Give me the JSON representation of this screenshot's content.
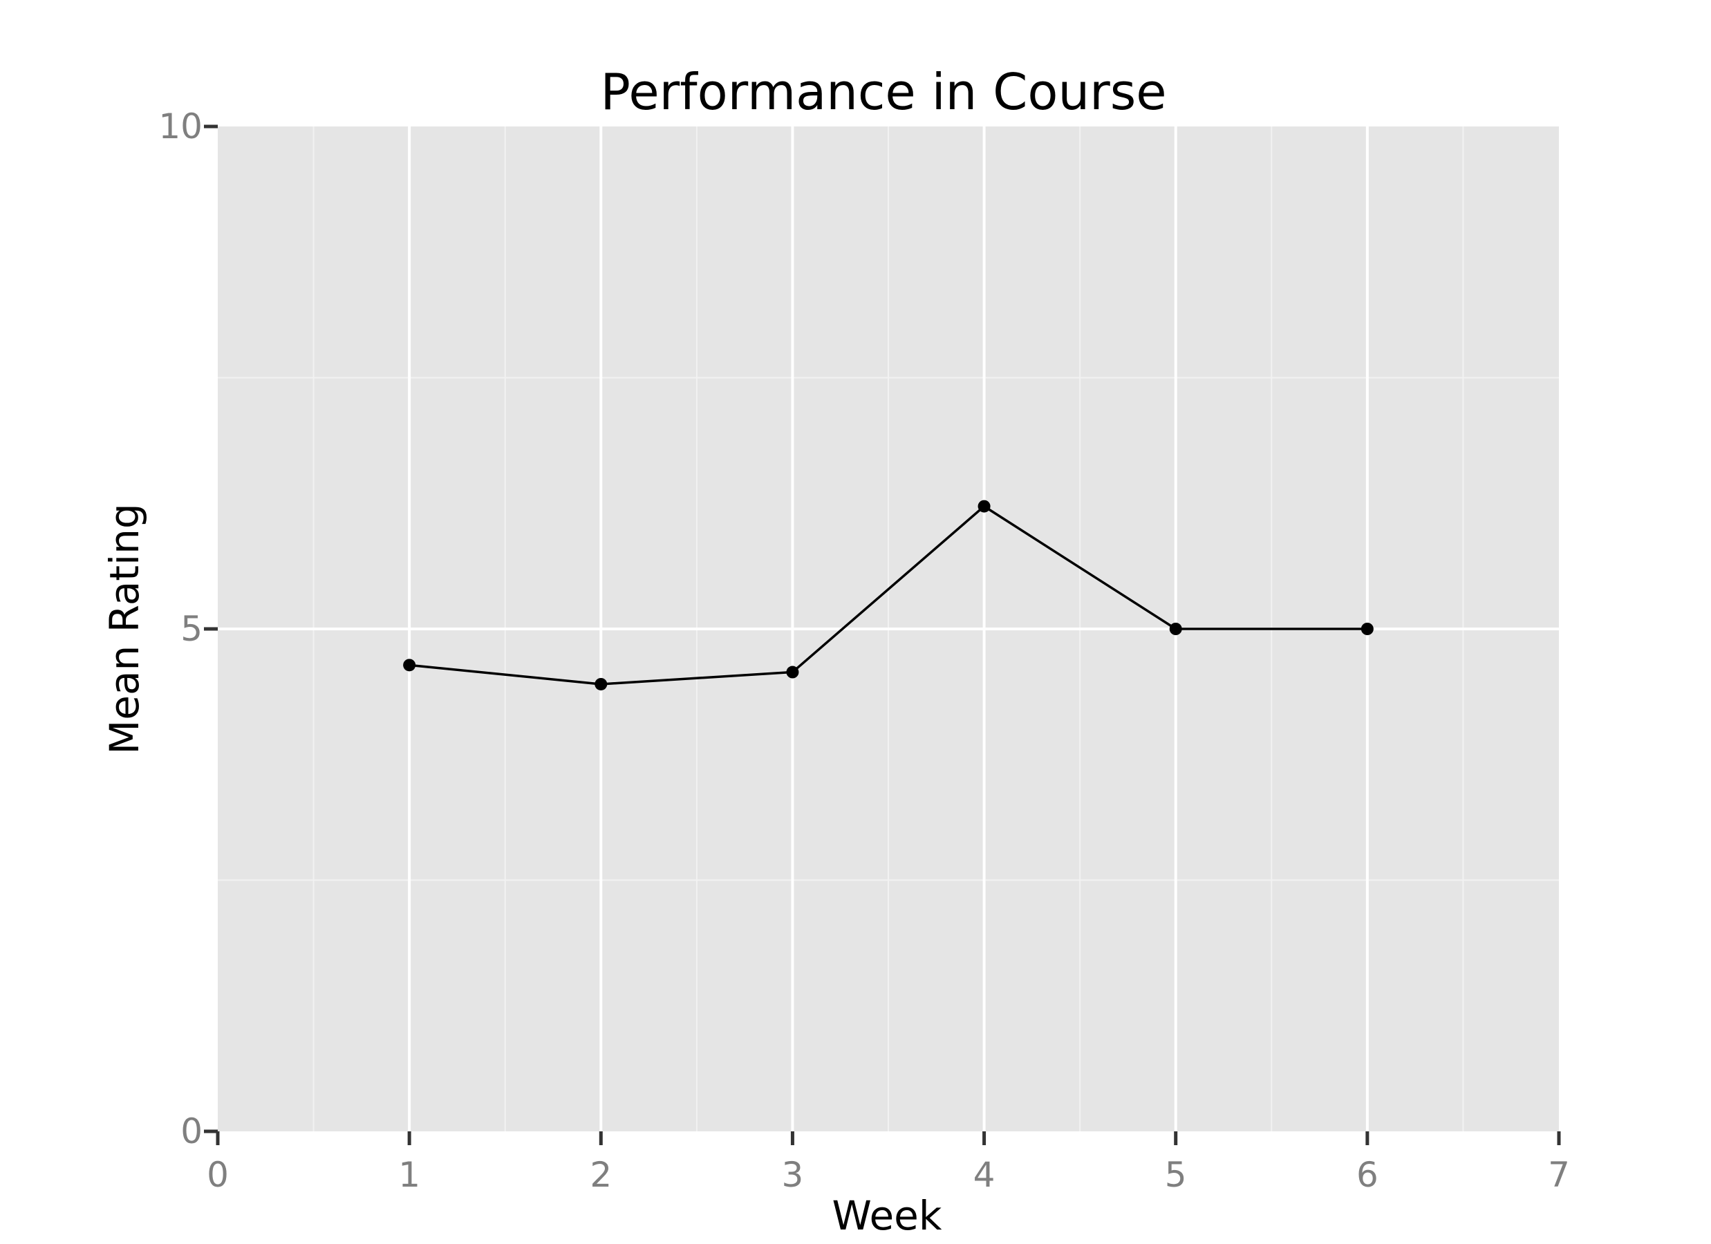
{
  "chart_data": {
    "type": "line",
    "title": "Performance in Course",
    "xlabel": "Week",
    "ylabel": "Mean Rating",
    "x": [
      1,
      2,
      3,
      4,
      5,
      6
    ],
    "series": [
      {
        "values": [
          4.64,
          4.45,
          4.57,
          6.22,
          5.0,
          5.0
        ]
      }
    ],
    "xlim": [
      0,
      7
    ],
    "ylim": [
      0,
      10
    ],
    "xticks": [
      "0",
      "1",
      "2",
      "3",
      "4",
      "5",
      "6",
      "7"
    ],
    "yticks": [
      "0",
      "5",
      "10"
    ],
    "grid": true,
    "legend": "none",
    "colors": {
      "panel_background": "#e5e5e5",
      "line": "#000000",
      "point": "#000000",
      "grid_major": "#ffffff",
      "grid_minor": "#f2f2f2",
      "tick_label": "#7f7f7f"
    }
  }
}
